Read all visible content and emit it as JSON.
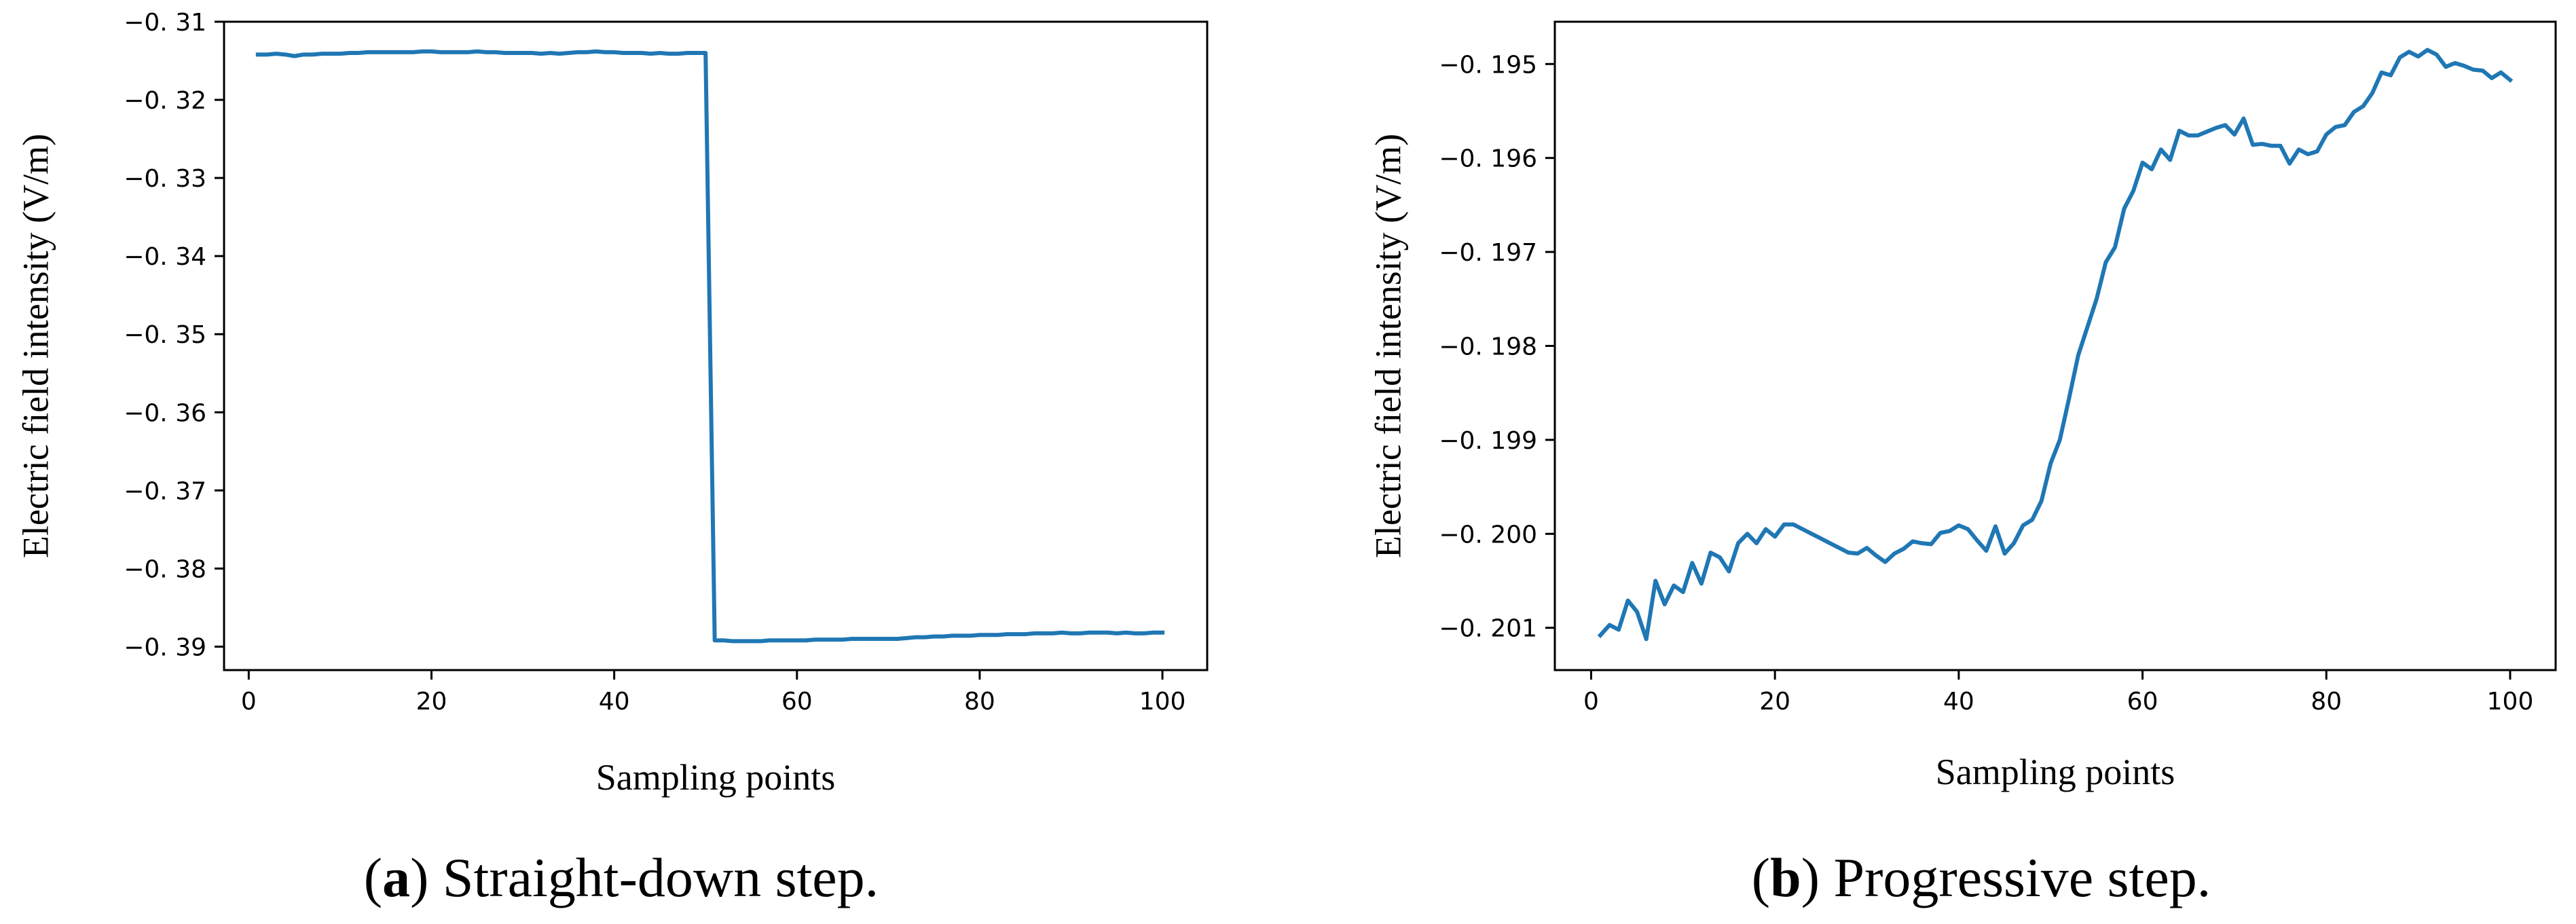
{
  "chart_data": [
    {
      "type": "line",
      "title": "",
      "xlabel": "Sampling points",
      "ylabel": "Electric field intensity (V/m)",
      "xlim": [
        -2.7,
        104.9
      ],
      "ylim": [
        -0.393,
        -0.31
      ],
      "xticks": [
        0,
        20,
        40,
        60,
        80,
        100
      ],
      "xtick_labels": [
        "0",
        "20",
        "40",
        "60",
        "80",
        "100"
      ],
      "yticks": [
        -0.31,
        -0.32,
        -0.33,
        -0.34,
        -0.35,
        -0.36,
        -0.37,
        -0.38,
        -0.39
      ],
      "ytick_labels": [
        "−0. 31",
        "−0. 32",
        "−0. 33",
        "−0. 34",
        "−0. 35",
        "−0. 36",
        "−0. 37",
        "−0. 38",
        "−0. 39"
      ],
      "color": "#1f77b4",
      "caption": {
        "open": "(",
        "letter": "a",
        "rest": ") Straight-down step."
      },
      "series": [
        {
          "name": "Straight-down step",
          "x": [
            1,
            2,
            3,
            4,
            5,
            6,
            7,
            8,
            9,
            10,
            11,
            12,
            13,
            14,
            15,
            16,
            17,
            18,
            19,
            20,
            21,
            22,
            23,
            24,
            25,
            26,
            27,
            28,
            29,
            30,
            31,
            32,
            33,
            34,
            35,
            36,
            37,
            38,
            39,
            40,
            41,
            42,
            43,
            44,
            45,
            46,
            47,
            48,
            49,
            50,
            51,
            52,
            53,
            54,
            55,
            56,
            57,
            58,
            59,
            60,
            61,
            62,
            63,
            64,
            65,
            66,
            67,
            68,
            69,
            70,
            71,
            72,
            73,
            74,
            75,
            76,
            77,
            78,
            79,
            80,
            81,
            82,
            83,
            84,
            85,
            86,
            87,
            88,
            89,
            90,
            91,
            92,
            93,
            94,
            95,
            96,
            97,
            98,
            99,
            100
          ],
          "y": [
            -0.3142,
            -0.3142,
            -0.3141,
            -0.3142,
            -0.3144,
            -0.3142,
            -0.3142,
            -0.3141,
            -0.3141,
            -0.3141,
            -0.314,
            -0.314,
            -0.3139,
            -0.3139,
            -0.3139,
            -0.3139,
            -0.3139,
            -0.3139,
            -0.3138,
            -0.3138,
            -0.3139,
            -0.3139,
            -0.3139,
            -0.3139,
            -0.3138,
            -0.3139,
            -0.3139,
            -0.314,
            -0.314,
            -0.314,
            -0.314,
            -0.3141,
            -0.314,
            -0.3141,
            -0.314,
            -0.3139,
            -0.3139,
            -0.3138,
            -0.3139,
            -0.3139,
            -0.314,
            -0.314,
            -0.314,
            -0.3141,
            -0.314,
            -0.3141,
            -0.3141,
            -0.314,
            -0.314,
            -0.314,
            -0.3892,
            -0.3892,
            -0.3893,
            -0.3893,
            -0.3893,
            -0.3893,
            -0.3892,
            -0.3892,
            -0.3892,
            -0.3892,
            -0.3892,
            -0.3891,
            -0.3891,
            -0.3891,
            -0.3891,
            -0.389,
            -0.389,
            -0.389,
            -0.389,
            -0.389,
            -0.389,
            -0.3889,
            -0.3888,
            -0.3888,
            -0.3887,
            -0.3887,
            -0.3886,
            -0.3886,
            -0.3886,
            -0.3885,
            -0.3885,
            -0.3885,
            -0.3884,
            -0.3884,
            -0.3884,
            -0.3883,
            -0.3883,
            -0.3883,
            -0.3882,
            -0.3883,
            -0.3883,
            -0.3882,
            -0.3882,
            -0.3882,
            -0.3883,
            -0.3882,
            -0.3883,
            -0.3883,
            -0.3882,
            -0.3882
          ]
        }
      ]
    },
    {
      "type": "line",
      "title": "",
      "xlabel": "Sampling points",
      "ylabel": "Electric field intensity (V/m)",
      "xlim": [
        -3.95,
        104.95
      ],
      "ylim": [
        -0.20145,
        -0.19455
      ],
      "xticks": [
        0,
        20,
        40,
        60,
        80,
        100
      ],
      "xtick_labels": [
        "0",
        "20",
        "40",
        "60",
        "80",
        "100"
      ],
      "yticks": [
        -0.195,
        -0.196,
        -0.197,
        -0.198,
        -0.199,
        -0.2,
        -0.201
      ],
      "ytick_labels": [
        "−0. 195",
        "−0. 196",
        "−0. 197",
        "−0. 198",
        "−0. 199",
        "−0. 200",
        "−0. 201"
      ],
      "color": "#1f77b4",
      "caption": {
        "open": "(",
        "letter": "b",
        "rest": ") Progressive step."
      },
      "series": [
        {
          "name": "Progressive step",
          "x": [
            1,
            2,
            3,
            4,
            5,
            6,
            7,
            8,
            9,
            10,
            11,
            12,
            13,
            14,
            15,
            16,
            17,
            18,
            19,
            20,
            21,
            22,
            23,
            24,
            25,
            26,
            27,
            28,
            29,
            30,
            31,
            32,
            33,
            34,
            35,
            36,
            37,
            38,
            39,
            40,
            41,
            42,
            43,
            44,
            45,
            46,
            47,
            48,
            49,
            50,
            51,
            52,
            53,
            54,
            55,
            56,
            57,
            58,
            59,
            60,
            61,
            62,
            63,
            64,
            65,
            66,
            67,
            68,
            69,
            70,
            71,
            72,
            73,
            74,
            75,
            76,
            77,
            78,
            79,
            80,
            81,
            82,
            83,
            84,
            85,
            86,
            87,
            88,
            89,
            90,
            91,
            92,
            93,
            94,
            95,
            96,
            97,
            98,
            99,
            100
          ],
          "y": [
            -0.20108,
            -0.20097,
            -0.20102,
            -0.20071,
            -0.20083,
            -0.20112,
            -0.2005,
            -0.20075,
            -0.20055,
            -0.20062,
            -0.20031,
            -0.20053,
            -0.2002,
            -0.20025,
            -0.2004,
            -0.2001,
            -0.2,
            -0.2001,
            -0.19995,
            -0.20003,
            -0.1999,
            -0.1999,
            -0.19995,
            -0.2,
            -0.20005,
            -0.2001,
            -0.20015,
            -0.2002,
            -0.20021,
            -0.20015,
            -0.20023,
            -0.2003,
            -0.20021,
            -0.20016,
            -0.20008,
            -0.2001,
            -0.20011,
            -0.19999,
            -0.19997,
            -0.19991,
            -0.19995,
            -0.20007,
            -0.20018,
            -0.19992,
            -0.20021,
            -0.2001,
            -0.19991,
            -0.19985,
            -0.19965,
            -0.19925,
            -0.199,
            -0.19856,
            -0.1981,
            -0.1978,
            -0.1975,
            -0.19711,
            -0.19695,
            -0.19654,
            -0.19635,
            -0.19605,
            -0.19612,
            -0.19591,
            -0.19602,
            -0.19571,
            -0.19576,
            -0.19576,
            -0.19572,
            -0.19568,
            -0.19565,
            -0.19575,
            -0.19558,
            -0.19586,
            -0.19585,
            -0.19587,
            -0.19587,
            -0.19606,
            -0.19591,
            -0.19596,
            -0.19593,
            -0.19575,
            -0.19567,
            -0.19565,
            -0.19551,
            -0.19545,
            -0.19531,
            -0.19509,
            -0.19512,
            -0.19493,
            -0.19487,
            -0.19492,
            -0.19485,
            -0.1949,
            -0.19503,
            -0.19499,
            -0.19502,
            -0.19506,
            -0.19507,
            -0.19515,
            -0.19509,
            -0.19517
          ]
        }
      ]
    }
  ]
}
